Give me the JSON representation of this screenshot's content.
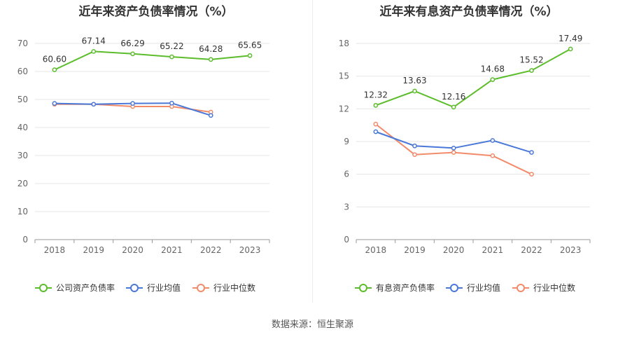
{
  "source_text": "数据来源：恒生聚源",
  "chart_data": [
    {
      "type": "line",
      "title": "近年来资产负债率情况（%）",
      "categories": [
        "2018",
        "2019",
        "2020",
        "2021",
        "2022",
        "2023"
      ],
      "ylim": [
        0,
        70
      ],
      "yticks": [
        0,
        10,
        20,
        30,
        40,
        50,
        60,
        70
      ],
      "series": [
        {
          "name": "公司资产负债率",
          "color": "#5bbd2b",
          "values": [
            60.6,
            67.14,
            66.29,
            65.22,
            64.28,
            65.65
          ],
          "labels": [
            "60.60",
            "67.14",
            "66.29",
            "65.22",
            "64.28",
            "65.65"
          ]
        },
        {
          "name": "行业均值",
          "color": "#4a78d8",
          "values": [
            48.6,
            48.3,
            48.6,
            48.7,
            44.3,
            null
          ]
        },
        {
          "name": "行业中位数",
          "color": "#f28b6a",
          "values": [
            48.3,
            48.3,
            47.5,
            47.5,
            45.5,
            null
          ]
        }
      ]
    },
    {
      "type": "line",
      "title": "近年来有息资产负债率情况（%）",
      "categories": [
        "2018",
        "2019",
        "2020",
        "2021",
        "2022",
        "2023"
      ],
      "ylim": [
        0,
        18
      ],
      "yticks": [
        0,
        3,
        6,
        9,
        12,
        15,
        18
      ],
      "series": [
        {
          "name": "有息资产负债率",
          "color": "#5bbd2b",
          "values": [
            12.32,
            13.63,
            12.16,
            14.68,
            15.52,
            17.49
          ],
          "labels": [
            "12.32",
            "13.63",
            "12.16",
            "14.68",
            "15.52",
            "17.49"
          ]
        },
        {
          "name": "行业均值",
          "color": "#4a78d8",
          "values": [
            9.9,
            8.6,
            8.4,
            9.1,
            8.0,
            null
          ]
        },
        {
          "name": "行业中位数",
          "color": "#f28b6a",
          "values": [
            10.6,
            7.8,
            8.0,
            7.7,
            6.0,
            null
          ]
        }
      ]
    }
  ]
}
